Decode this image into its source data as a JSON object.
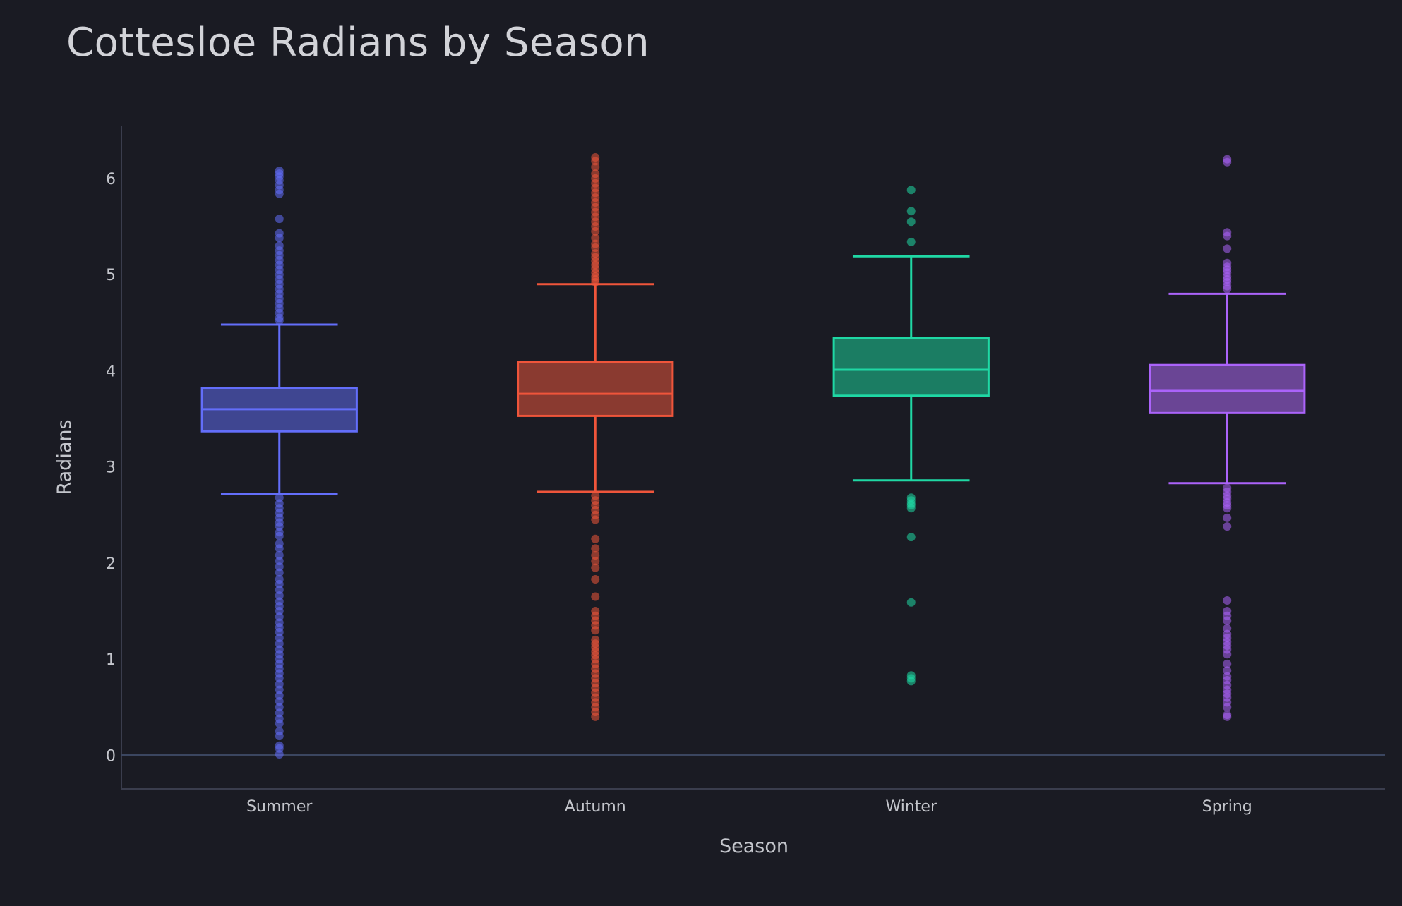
{
  "chart_data": {
    "type": "box",
    "title": "Cottesloe Radians by Season",
    "xlabel": "Season",
    "ylabel": "Radians",
    "ylim": [
      -0.35,
      6.55
    ],
    "yticks": [
      0,
      1,
      2,
      3,
      4,
      5,
      6
    ],
    "categories": [
      "Summer",
      "Autumn",
      "Winter",
      "Spring"
    ],
    "grid": false,
    "series": [
      {
        "category": "Summer",
        "color": "#636efa",
        "fill": "#3f4691",
        "q1": 3.37,
        "median": 3.6,
        "q3": 3.82,
        "lower_whisker": 2.72,
        "upper_whisker": 4.48,
        "outliers": [
          6.08,
          6.05,
          6.02,
          5.98,
          5.93,
          5.88,
          5.84,
          5.58,
          5.43,
          5.38,
          5.3,
          5.25,
          5.2,
          5.15,
          5.1,
          5.05,
          5.0,
          4.95,
          4.9,
          4.85,
          4.8,
          4.75,
          4.7,
          4.65,
          4.6,
          4.55,
          4.52,
          2.68,
          2.62,
          2.57,
          2.52,
          2.47,
          2.42,
          2.38,
          2.32,
          2.28,
          2.2,
          2.15,
          2.08,
          2.02,
          1.96,
          1.9,
          1.83,
          1.78,
          1.72,
          1.66,
          1.6,
          1.55,
          1.5,
          1.44,
          1.38,
          1.33,
          1.28,
          1.22,
          1.16,
          1.1,
          1.05,
          1.0,
          0.95,
          0.9,
          0.85,
          0.8,
          0.74,
          0.68,
          0.62,
          0.56,
          0.5,
          0.44,
          0.38,
          0.33,
          0.25,
          0.2,
          0.1,
          0.07,
          0.01
        ]
      },
      {
        "category": "Autumn",
        "color": "#ef553b",
        "fill": "#8a3a30",
        "q1": 3.53,
        "median": 3.76,
        "q3": 4.09,
        "lower_whisker": 2.74,
        "upper_whisker": 4.9,
        "outliers": [
          6.22,
          6.18,
          6.12,
          6.05,
          6.0,
          5.95,
          5.9,
          5.85,
          5.8,
          5.75,
          5.7,
          5.65,
          5.6,
          5.55,
          5.5,
          5.45,
          5.38,
          5.32,
          5.28,
          5.22,
          5.18,
          5.14,
          5.1,
          5.06,
          5.02,
          4.98,
          4.95,
          4.92,
          2.7,
          2.65,
          2.6,
          2.55,
          2.5,
          2.45,
          2.25,
          2.15,
          2.08,
          2.02,
          1.95,
          1.83,
          1.65,
          1.5,
          1.45,
          1.4,
          1.35,
          1.3,
          1.2,
          1.16,
          1.12,
          1.08,
          1.04,
          1.0,
          0.95,
          0.9,
          0.85,
          0.8,
          0.75,
          0.7,
          0.65,
          0.6,
          0.55,
          0.5,
          0.45,
          0.4
        ]
      },
      {
        "category": "Winter",
        "color": "#1fd8a4",
        "fill": "#1b7d63",
        "q1": 3.74,
        "median": 4.01,
        "q3": 4.34,
        "lower_whisker": 2.86,
        "upper_whisker": 5.19,
        "outliers": [
          5.88,
          5.66,
          5.55,
          5.34,
          2.68,
          2.65,
          2.62,
          2.6,
          2.57,
          2.27,
          1.59,
          0.83,
          0.8,
          0.77
        ]
      },
      {
        "category": "Spring",
        "color": "#ab63fa",
        "fill": "#6a4595",
        "q1": 3.56,
        "median": 3.79,
        "q3": 4.06,
        "lower_whisker": 2.83,
        "upper_whisker": 4.8,
        "outliers": [
          6.2,
          6.17,
          5.44,
          5.4,
          5.27,
          5.12,
          5.08,
          5.05,
          5.02,
          4.98,
          4.95,
          4.92,
          4.88,
          4.85,
          2.78,
          2.74,
          2.7,
          2.67,
          2.63,
          2.6,
          2.57,
          2.47,
          2.38,
          1.61,
          1.5,
          1.45,
          1.4,
          1.32,
          1.26,
          1.22,
          1.18,
          1.14,
          1.1,
          1.05,
          0.95,
          0.88,
          0.82,
          0.78,
          0.73,
          0.68,
          0.64,
          0.6,
          0.55,
          0.5,
          0.42,
          0.4
        ]
      }
    ]
  }
}
